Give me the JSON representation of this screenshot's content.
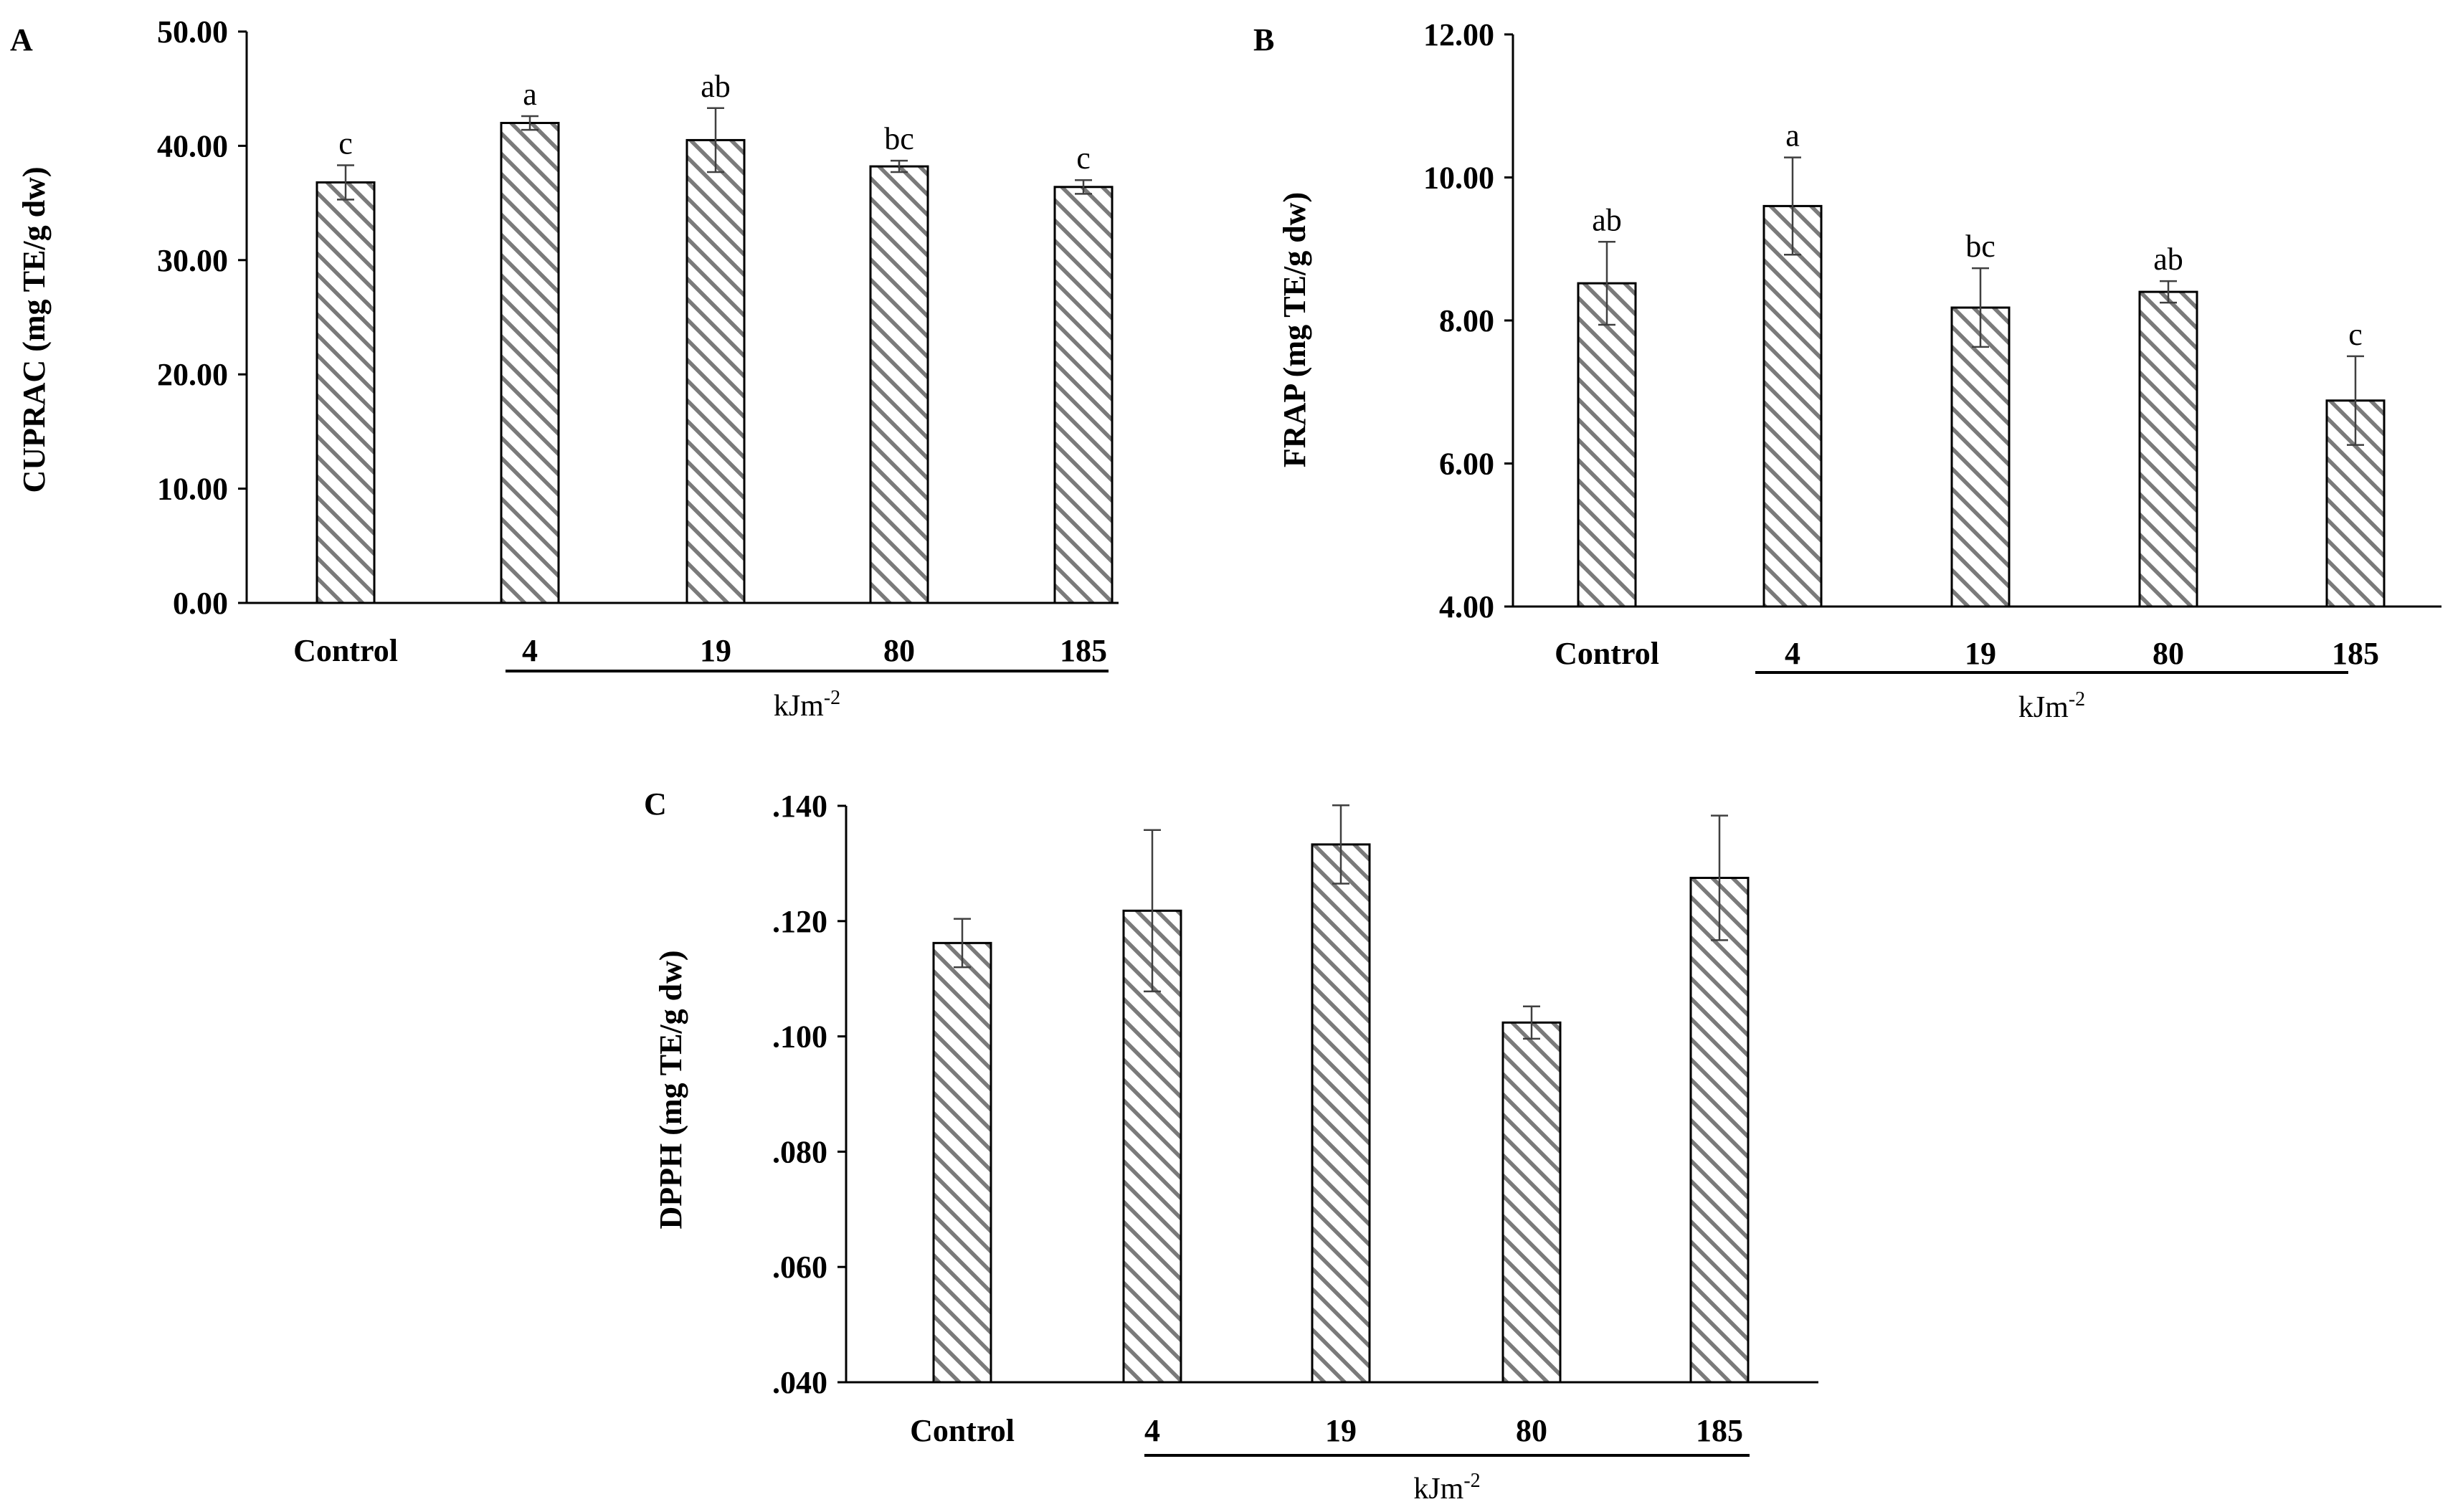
{
  "colors": {
    "bar_stroke": "#000000",
    "bar_hatch": "#7a7a7a",
    "axis": "#000000",
    "error_bar": "#404040"
  },
  "chart_data": [
    {
      "panel": "A",
      "type": "bar",
      "ylabel": "CUPRAC (mg TE/g dw)",
      "categories": [
        "Control",
        "4",
        "19",
        "80",
        "185"
      ],
      "group_label": "kJm",
      "group_label_sup": "-2",
      "yticks": [
        "0.00",
        "10.00",
        "20.00",
        "30.00",
        "40.00",
        "50.00"
      ],
      "ylim": [
        0,
        50
      ],
      "values": [
        36.8,
        42.0,
        40.5,
        38.2,
        36.4
      ],
      "errors": [
        1.5,
        0.6,
        2.8,
        0.5,
        0.6
      ],
      "letters": [
        "c",
        "a",
        "ab",
        "bc",
        "c"
      ],
      "grid": false,
      "pattern": "diagonal hatch"
    },
    {
      "panel": "B",
      "type": "bar",
      "ylabel": "FRAP (mg TE/g dw)",
      "categories": [
        "Control",
        "4",
        "19",
        "80",
        "185"
      ],
      "group_label": "kJm",
      "group_label_sup": "-2",
      "yticks": [
        "4.00",
        "6.00",
        "8.00",
        "10.00",
        "12.00"
      ],
      "ylim": [
        4,
        12
      ],
      "values": [
        8.52,
        9.6,
        8.18,
        8.4,
        6.88
      ],
      "errors": [
        0.58,
        0.68,
        0.55,
        0.15,
        0.62
      ],
      "letters": [
        "ab",
        "a",
        "bc",
        "ab",
        "c"
      ],
      "grid": false,
      "pattern": "diagonal hatch"
    },
    {
      "panel": "C",
      "type": "bar",
      "ylabel": "DPPH (mg TE/g dw)",
      "categories": [
        "Control",
        "4",
        "19",
        "80",
        "185"
      ],
      "group_label": "kJm",
      "group_label_sup": "-2",
      "yticks": [
        ".040",
        ".060",
        ".080",
        ".100",
        ".120",
        ".140"
      ],
      "ylim": [
        0.04,
        0.14
      ],
      "values": [
        0.1162,
        0.1218,
        0.1333,
        0.1024,
        0.1275
      ],
      "errors": [
        0.0042,
        0.014,
        0.0068,
        0.0028,
        0.0108
      ],
      "letters": [],
      "grid": false,
      "pattern": "diagonal hatch"
    }
  ]
}
